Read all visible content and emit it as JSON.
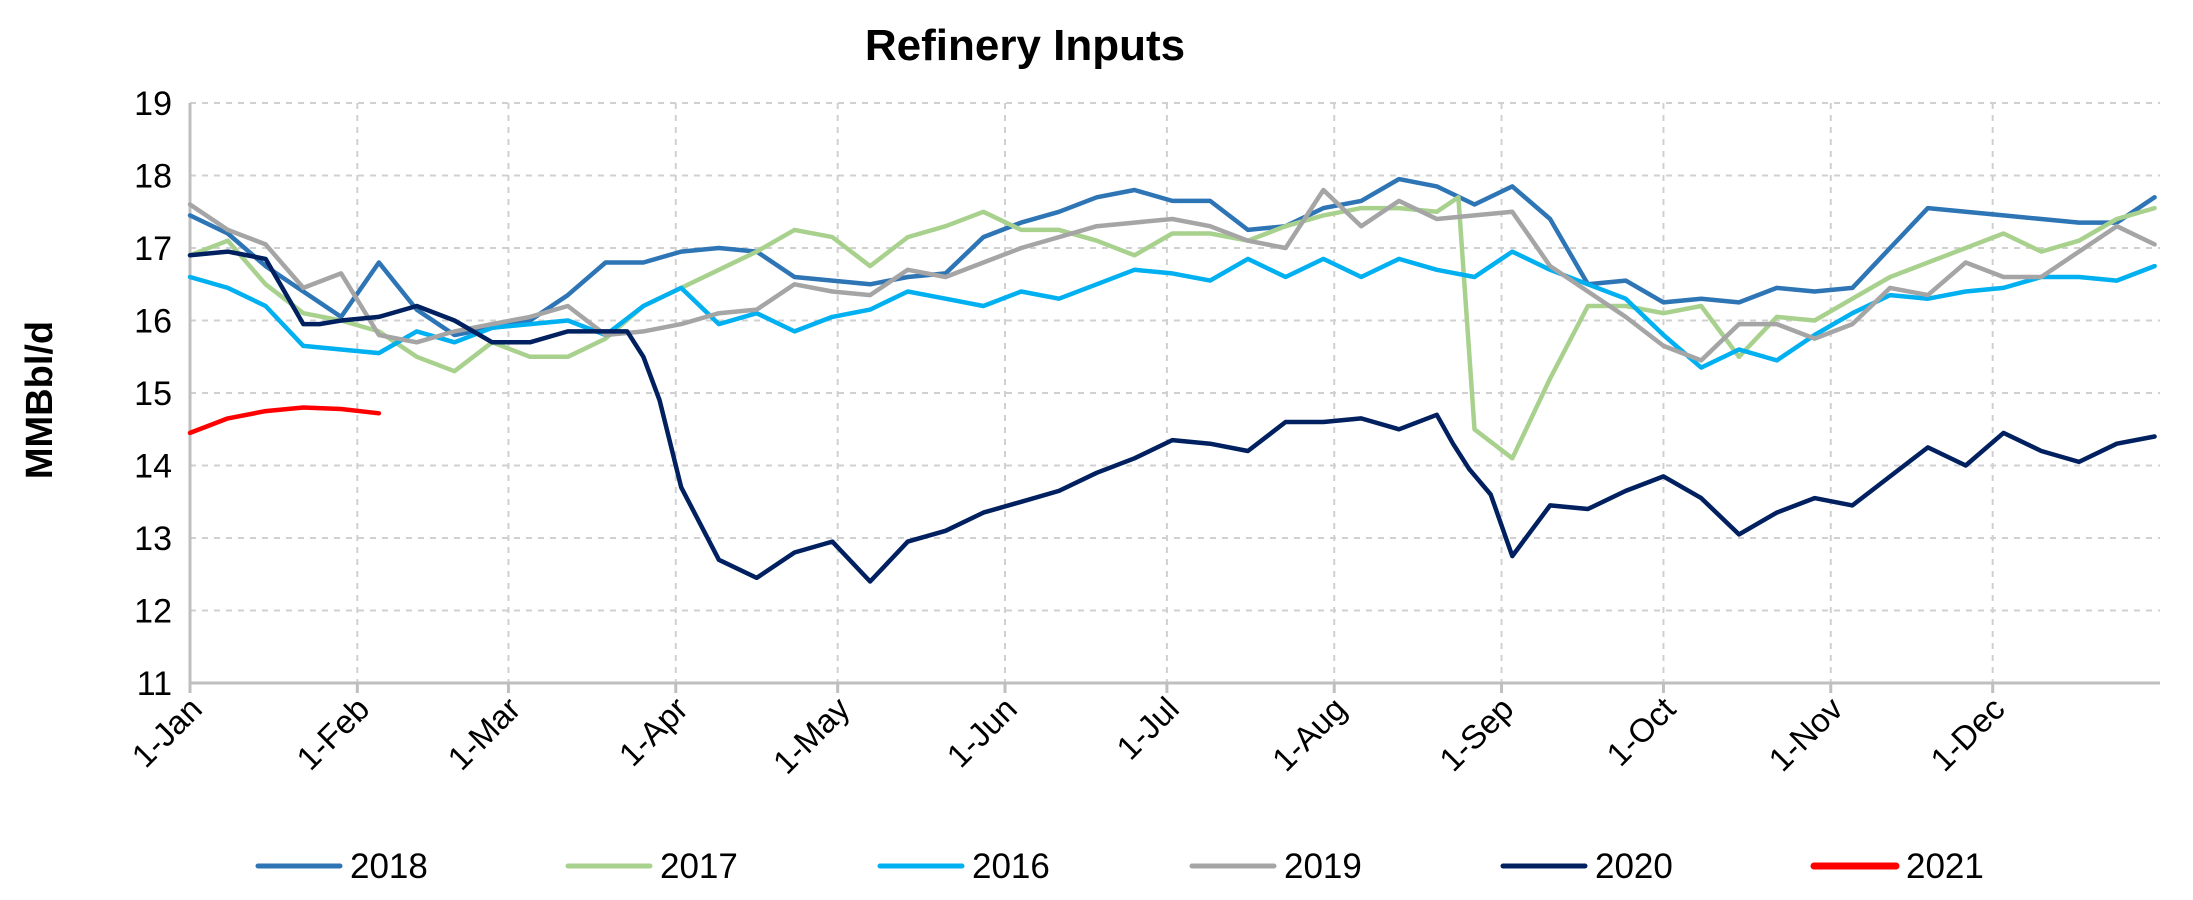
{
  "chart_data": {
    "type": "line",
    "title": "Refinery Inputs",
    "ylabel": "MMBbl/d",
    "xlabel": "",
    "ylim": [
      11,
      19
    ],
    "yticks": [
      11,
      12,
      13,
      14,
      15,
      16,
      17,
      18,
      19
    ],
    "x_unit": "day of year",
    "xlim": [
      1,
      366
    ],
    "xticks": [
      {
        "label": "1-Jan",
        "day": 1
      },
      {
        "label": "1-Feb",
        "day": 32
      },
      {
        "label": "1-Mar",
        "day": 60
      },
      {
        "label": "1-Apr",
        "day": 91
      },
      {
        "label": "1-May",
        "day": 121
      },
      {
        "label": "1-Jun",
        "day": 152
      },
      {
        "label": "1-Jul",
        "day": 182
      },
      {
        "label": "1-Aug",
        "day": 213
      },
      {
        "label": "1-Sep",
        "day": 244
      },
      {
        "label": "1-Oct",
        "day": 274
      },
      {
        "label": "1-Nov",
        "day": 305
      },
      {
        "label": "1-Dec",
        "day": 335
      }
    ],
    "grid": true,
    "legend_position": "bottom",
    "series": [
      {
        "name": "2018",
        "color": "#2E75B6",
        "x": [
          1,
          8,
          15,
          22,
          29,
          36,
          43,
          50,
          57,
          64,
          71,
          78,
          85,
          92,
          99,
          106,
          113,
          120,
          127,
          134,
          141,
          148,
          155,
          162,
          169,
          176,
          183,
          190,
          197,
          204,
          211,
          218,
          225,
          232,
          239,
          246,
          253,
          260,
          267,
          274,
          281,
          288,
          295,
          302,
          309,
          316,
          323,
          330,
          337,
          344,
          351,
          358,
          365
        ],
        "y": [
          17.45,
          17.2,
          16.75,
          16.4,
          16.05,
          16.8,
          16.15,
          15.8,
          15.9,
          16.0,
          16.35,
          16.8,
          16.8,
          16.95,
          17.0,
          16.95,
          16.6,
          16.55,
          16.5,
          16.6,
          16.65,
          17.15,
          17.35,
          17.5,
          17.7,
          17.8,
          17.65,
          17.65,
          17.25,
          17.3,
          17.55,
          17.65,
          17.95,
          17.85,
          17.6,
          17.85,
          17.4,
          16.5,
          16.55,
          16.25,
          16.3,
          16.25,
          16.45,
          16.4,
          16.45,
          17.0,
          17.55,
          17.5,
          17.45,
          17.4,
          17.35,
          17.35,
          17.7
        ]
      },
      {
        "name": "2017",
        "color": "#A9D18E",
        "x": [
          1,
          8,
          15,
          22,
          29,
          36,
          43,
          50,
          57,
          64,
          71,
          78,
          85,
          92,
          99,
          106,
          113,
          120,
          127,
          134,
          141,
          148,
          155,
          162,
          169,
          176,
          183,
          190,
          197,
          204,
          211,
          218,
          225,
          232,
          236,
          239,
          246,
          253,
          260,
          267,
          274,
          281,
          288,
          295,
          302,
          309,
          316,
          323,
          330,
          337,
          344,
          351,
          358,
          365
        ],
        "y": [
          16.9,
          17.1,
          16.5,
          16.1,
          16.0,
          15.85,
          15.5,
          15.3,
          15.7,
          15.5,
          15.5,
          15.75,
          16.2,
          16.45,
          16.7,
          16.95,
          17.25,
          17.15,
          16.75,
          17.15,
          17.3,
          17.5,
          17.25,
          17.25,
          17.1,
          16.9,
          17.2,
          17.2,
          17.1,
          17.3,
          17.45,
          17.55,
          17.55,
          17.5,
          17.7,
          14.5,
          14.1,
          15.2,
          16.2,
          16.2,
          16.1,
          16.2,
          15.5,
          16.05,
          16.0,
          16.3,
          16.6,
          16.8,
          17.0,
          17.2,
          16.95,
          17.1,
          17.4,
          17.55
        ]
      },
      {
        "name": "2016",
        "color": "#00B0F0",
        "x": [
          1,
          8,
          15,
          22,
          29,
          36,
          43,
          50,
          57,
          64,
          71,
          78,
          85,
          92,
          99,
          106,
          113,
          120,
          127,
          134,
          141,
          148,
          155,
          162,
          169,
          176,
          183,
          190,
          197,
          204,
          211,
          218,
          225,
          232,
          239,
          246,
          253,
          260,
          267,
          274,
          281,
          288,
          295,
          302,
          309,
          316,
          323,
          330,
          337,
          344,
          351,
          358,
          365
        ],
        "y": [
          16.6,
          16.45,
          16.2,
          15.65,
          15.6,
          15.55,
          15.85,
          15.7,
          15.9,
          15.95,
          16.0,
          15.8,
          16.2,
          16.45,
          15.95,
          16.1,
          15.85,
          16.05,
          16.15,
          16.4,
          16.3,
          16.2,
          16.4,
          16.3,
          16.5,
          16.7,
          16.65,
          16.55,
          16.85,
          16.6,
          16.85,
          16.6,
          16.85,
          16.7,
          16.6,
          16.95,
          16.7,
          16.5,
          16.3,
          15.8,
          15.35,
          15.6,
          15.45,
          15.8,
          16.1,
          16.35,
          16.3,
          16.4,
          16.45,
          16.6,
          16.6,
          16.55,
          16.75
        ]
      },
      {
        "name": "2019",
        "color": "#A5A5A5",
        "x": [
          1,
          8,
          15,
          22,
          29,
          36,
          43,
          50,
          57,
          64,
          71,
          78,
          85,
          92,
          99,
          106,
          113,
          120,
          127,
          134,
          141,
          148,
          155,
          162,
          169,
          176,
          183,
          190,
          197,
          204,
          211,
          218,
          225,
          232,
          239,
          246,
          253,
          260,
          267,
          274,
          281,
          288,
          295,
          302,
          309,
          316,
          323,
          330,
          337,
          344,
          351,
          358,
          365
        ],
        "y": [
          17.6,
          17.25,
          17.05,
          16.45,
          16.65,
          15.8,
          15.7,
          15.85,
          15.95,
          16.05,
          16.2,
          15.8,
          15.85,
          15.95,
          16.1,
          16.15,
          16.5,
          16.4,
          16.35,
          16.7,
          16.6,
          16.8,
          17.0,
          17.15,
          17.3,
          17.35,
          17.4,
          17.3,
          17.1,
          17.0,
          17.8,
          17.3,
          17.65,
          17.4,
          17.45,
          17.5,
          16.75,
          16.4,
          16.05,
          15.65,
          15.45,
          15.95,
          15.95,
          15.75,
          15.95,
          16.45,
          16.35,
          16.8,
          16.6,
          16.6,
          16.95,
          17.3,
          17.05
        ]
      },
      {
        "name": "2020",
        "color": "#002060",
        "x": [
          1,
          8,
          15,
          22,
          25,
          29,
          36,
          43,
          50,
          57,
          64,
          71,
          78,
          82,
          85,
          88,
          92,
          99,
          106,
          113,
          120,
          127,
          134,
          141,
          148,
          155,
          162,
          169,
          176,
          183,
          190,
          197,
          204,
          211,
          218,
          225,
          232,
          235,
          238,
          242,
          246,
          253,
          260,
          267,
          274,
          281,
          288,
          295,
          302,
          309,
          316,
          323,
          330,
          337,
          344,
          351,
          358,
          365
        ],
        "y": [
          16.9,
          16.95,
          16.85,
          15.95,
          15.95,
          16.0,
          16.05,
          16.2,
          16.0,
          15.7,
          15.7,
          15.85,
          15.85,
          15.85,
          15.5,
          14.9,
          13.7,
          12.7,
          12.45,
          12.8,
          12.95,
          12.4,
          12.95,
          13.1,
          13.35,
          13.5,
          13.65,
          13.9,
          14.1,
          14.35,
          14.3,
          14.2,
          14.6,
          14.6,
          14.65,
          14.5,
          14.7,
          14.3,
          13.95,
          13.6,
          12.75,
          13.45,
          13.4,
          13.65,
          13.85,
          13.55,
          13.05,
          13.35,
          13.55,
          13.45,
          13.85,
          14.25,
          14.0,
          14.45,
          14.2,
          14.05,
          14.3,
          14.4
        ]
      },
      {
        "name": "2021",
        "color": "#FF0000",
        "x": [
          1,
          8,
          15,
          22,
          29,
          36
        ],
        "y": [
          14.45,
          14.65,
          14.75,
          14.8,
          14.78,
          14.72
        ]
      }
    ]
  }
}
